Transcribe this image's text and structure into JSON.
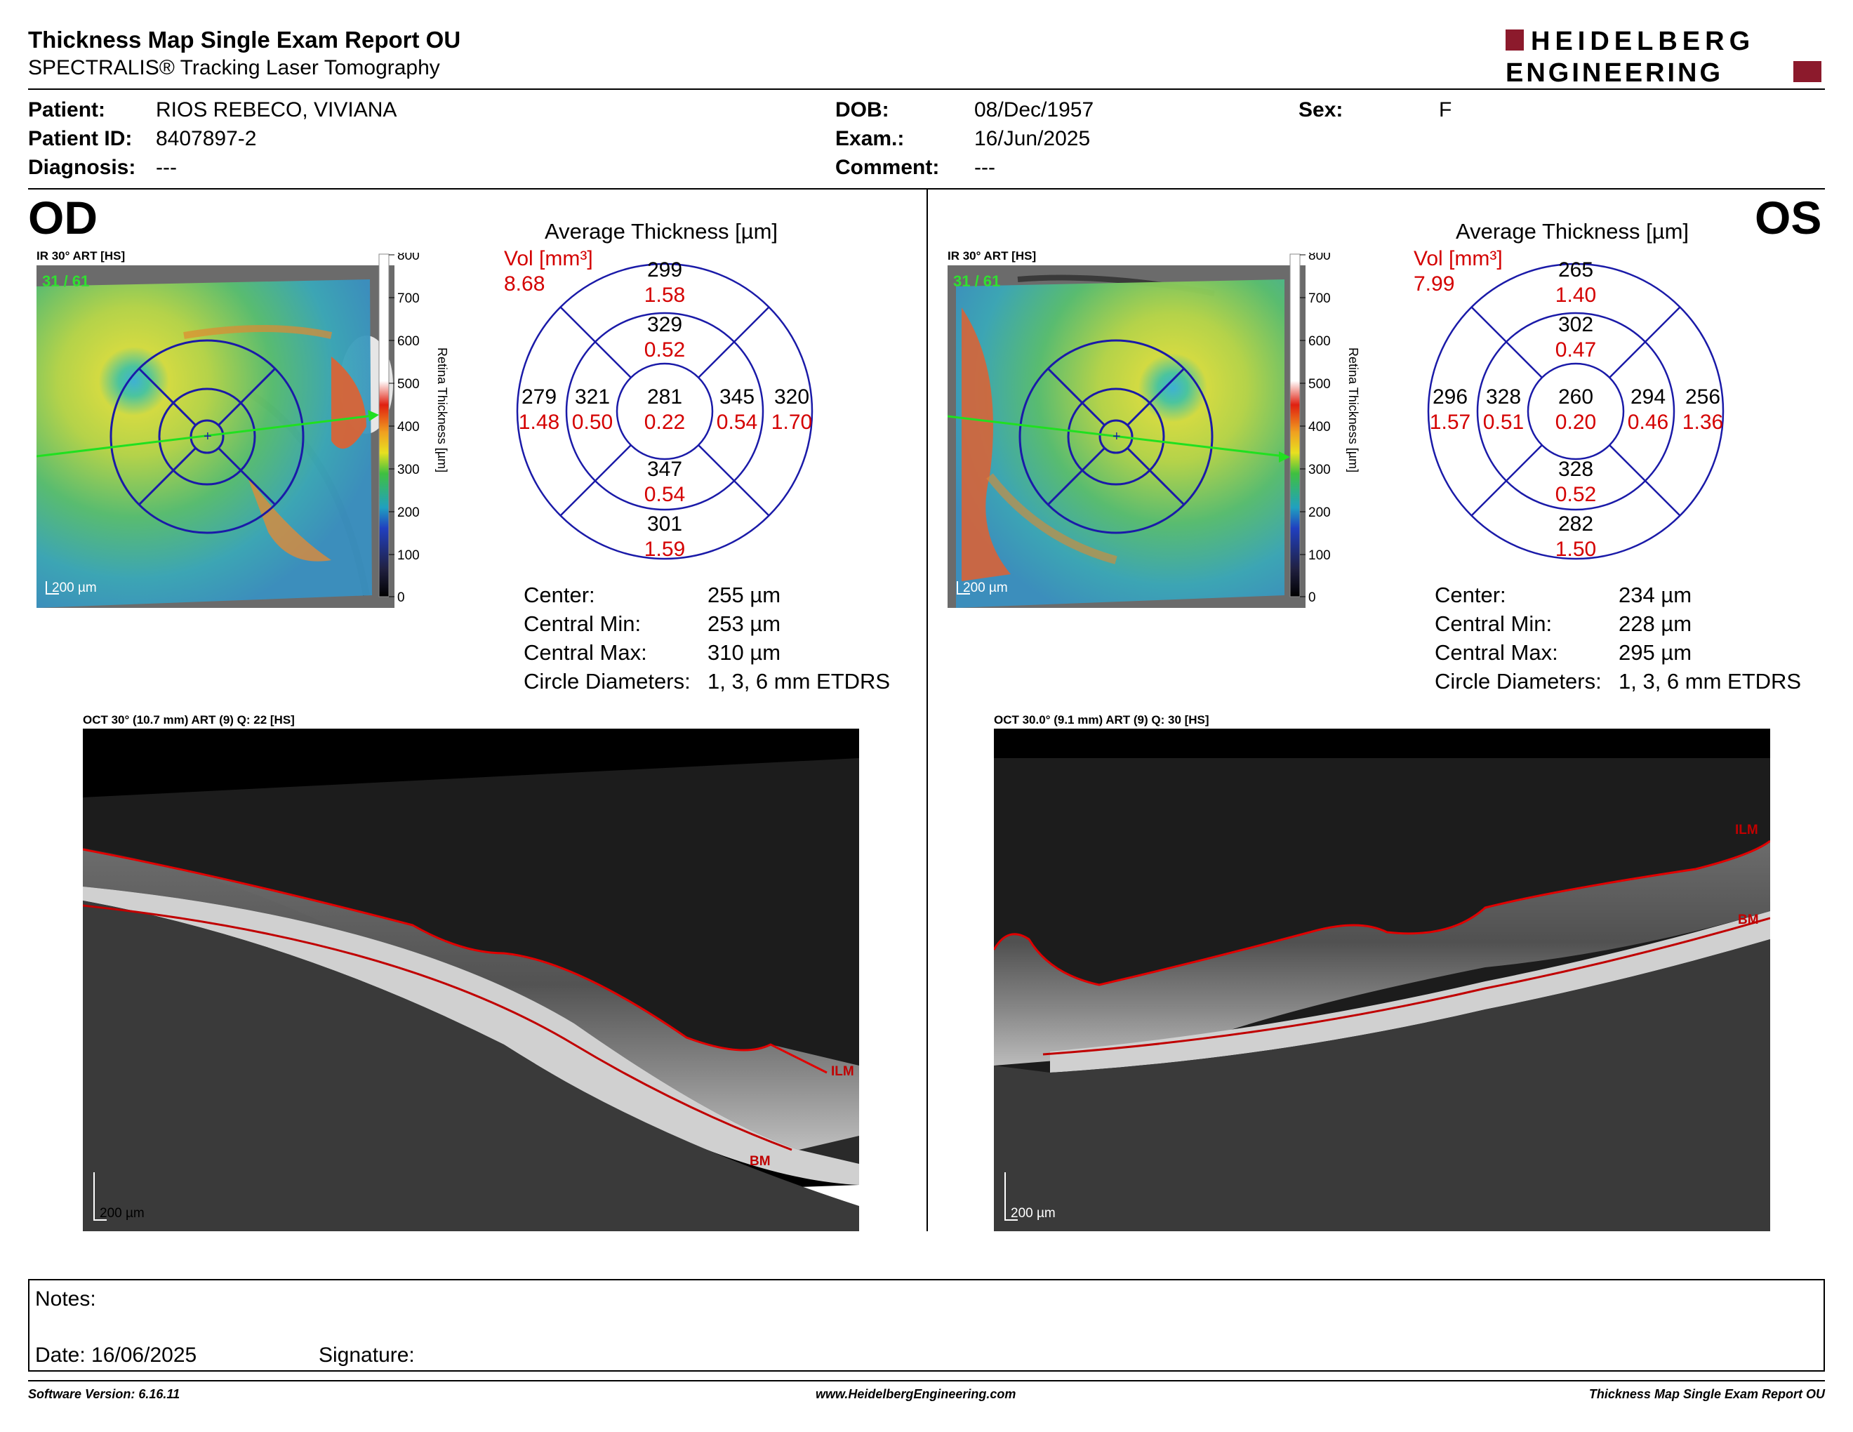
{
  "report": {
    "title": "Thickness Map Single Exam Report OU",
    "subtitle": "SPECTRALIS® Tracking Laser Tomography",
    "logo_line1": "HEIDELBERG",
    "logo_line2": "ENGINEERING"
  },
  "patient": {
    "patient_label": "Patient:",
    "patient_value": "RIOS REBECO, VIVIANA",
    "id_label": "Patient ID:",
    "id_value": "8407897-2",
    "diagnosis_label": "Diagnosis:",
    "diagnosis_value": "---",
    "dob_label": "DOB:",
    "dob_value": "08/Dec/1957",
    "exam_label": "Exam.:",
    "exam_value": "16/Jun/2025",
    "comment_label": "Comment:",
    "comment_value": "---",
    "sex_label": "Sex:",
    "sex_value": "F"
  },
  "scale": {
    "ticks": [
      "800",
      "700",
      "600",
      "500",
      "400",
      "300",
      "200",
      "100",
      "0"
    ],
    "axis_label": "Retina  Thickness [µm]"
  },
  "od": {
    "eye_label": "OD",
    "ir_label": "IR 30° ART [HS]",
    "frame": "31 / 61",
    "scalebar": "200 µm",
    "avg_title": "Average Thickness [µm]",
    "vol_label": "Vol [mm³]",
    "vol_total": "8.68",
    "sectors": {
      "outer_sup": {
        "t": "299",
        "v": "1.58"
      },
      "inner_sup": {
        "t": "329",
        "v": "0.52"
      },
      "outer_temp": {
        "t": "279",
        "v": "1.48"
      },
      "inner_temp": {
        "t": "321",
        "v": "0.50"
      },
      "center": {
        "t": "281",
        "v": "0.22"
      },
      "inner_nasal": {
        "t": "345",
        "v": "0.54"
      },
      "outer_nasal": {
        "t": "320",
        "v": "1.70"
      },
      "inner_inf": {
        "t": "347",
        "v": "0.54"
      },
      "outer_inf": {
        "t": "301",
        "v": "1.59"
      }
    },
    "stats": {
      "center_label": "Center:",
      "center_value": "255 µm",
      "min_label": "Central Min:",
      "min_value": "253 µm",
      "max_label": "Central Max:",
      "max_value": "310 µm",
      "diam_label": "Circle Diameters:",
      "diam_value": "1, 3, 6 mm ETDRS"
    },
    "oct_label": "OCT 30° (10.7 mm) ART (9) Q: 22 [HS]",
    "oct_scalebar": "200 µm",
    "ilm": "ILM",
    "bm": "BM"
  },
  "os": {
    "eye_label": "OS",
    "ir_label": "IR 30° ART [HS]",
    "frame": "31 / 61",
    "scalebar": "200 µm",
    "avg_title": "Average Thickness [µm]",
    "vol_label": "Vol [mm³]",
    "vol_total": "7.99",
    "sectors": {
      "outer_sup": {
        "t": "265",
        "v": "1.40"
      },
      "inner_sup": {
        "t": "302",
        "v": "0.47"
      },
      "outer_temp": {
        "t": "296",
        "v": "1.57"
      },
      "inner_temp": {
        "t": "328",
        "v": "0.51"
      },
      "center": {
        "t": "260",
        "v": "0.20"
      },
      "inner_nasal": {
        "t": "294",
        "v": "0.46"
      },
      "outer_nasal": {
        "t": "256",
        "v": "1.36"
      },
      "inner_inf": {
        "t": "328",
        "v": "0.52"
      },
      "outer_inf": {
        "t": "282",
        "v": "1.50"
      }
    },
    "stats": {
      "center_label": "Center:",
      "center_value": "234 µm",
      "min_label": "Central Min:",
      "min_value": "228 µm",
      "max_label": "Central Max:",
      "max_value": "295 µm",
      "diam_label": "Circle Diameters:",
      "diam_value": "1, 3, 6 mm ETDRS"
    },
    "oct_label": "OCT 30.0° (9.1 mm) ART (9) Q: 30 [HS]",
    "oct_scalebar": "200 µm",
    "ilm": "ILM",
    "bm": "BM"
  },
  "notes": {
    "notes_label": "Notes:",
    "date_label": "Date: 16/06/2025",
    "signature_label": "Signature:"
  },
  "footer": {
    "software": "Software Version: 6.16.11",
    "website": "www.HeidelbergEngineering.com",
    "report_name": "Thickness Map Single Exam Report OU"
  },
  "colors": {
    "thickness_red": "#d40000",
    "grid_blue": "#1a1aa8",
    "logo_red": "#8c1a2c"
  }
}
